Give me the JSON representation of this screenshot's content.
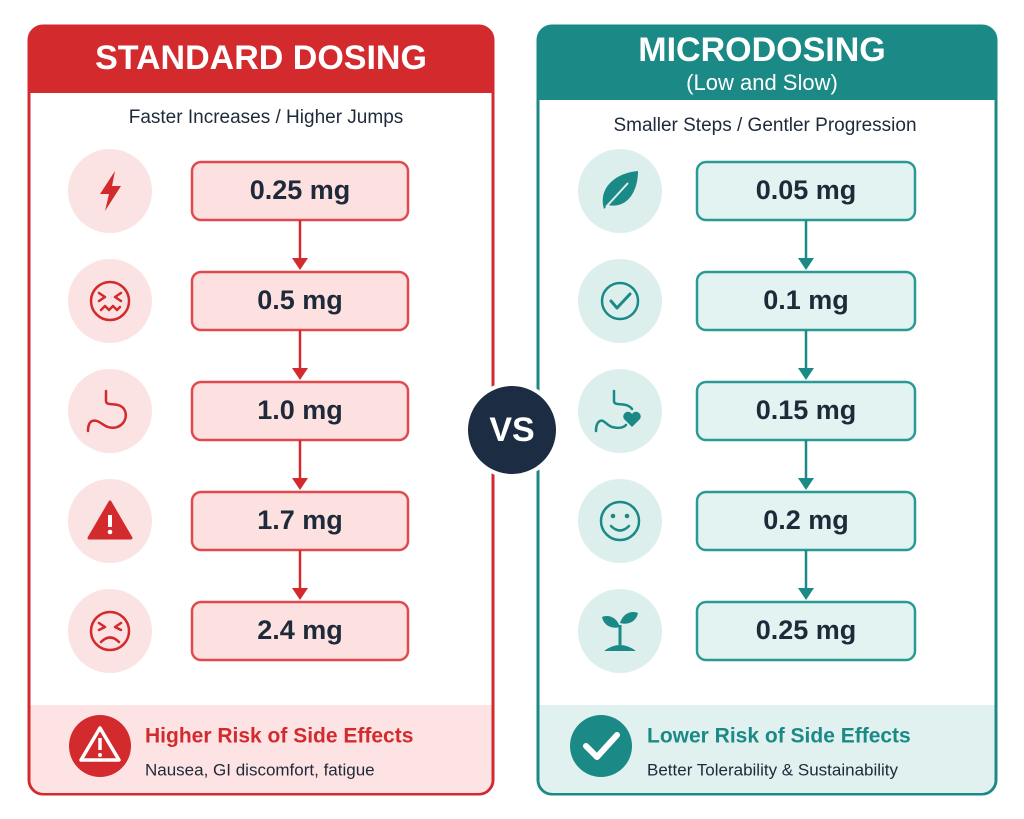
{
  "left": {
    "title": "STANDARD DOSING",
    "subtitle": "Faster Increases / Higher Jumps",
    "steps": [
      "0.25 mg",
      "0.5 mg",
      "1.0 mg",
      "1.7 mg",
      "2.4 mg"
    ],
    "footer": {
      "title": "Higher Risk of Side Effects",
      "text": "Nausea, GI discomfort, fatigue"
    }
  },
  "vs": "VS",
  "right": {
    "title": "MICRODOSING",
    "title_note": "(Low and Slow)",
    "subtitle": "Smaller Steps / Gentler Progression",
    "steps": [
      "0.05 mg",
      "0.1 mg",
      "0.15 mg",
      "0.2 mg",
      "0.25 mg"
    ],
    "footer": {
      "title": "Lower Risk of Side Effects",
      "text": "Better Tolerability & Sustainability"
    }
  }
}
